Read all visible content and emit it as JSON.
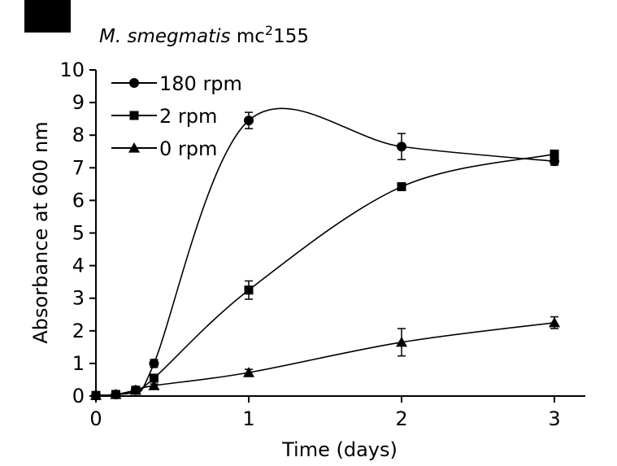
{
  "chart_data": {
    "type": "line",
    "title_italic": "M. smegmatis",
    "title_rest": "mc",
    "title_sup": "2",
    "title_tail": "155",
    "xlabel": "Time (days)",
    "ylabel": "Absorbance at 600 nm",
    "xlim": [
      0,
      3.2
    ],
    "ylim": [
      0,
      10
    ],
    "xticks": [
      0,
      1,
      2,
      3
    ],
    "yticks": [
      0,
      1,
      2,
      3,
      4,
      5,
      6,
      7,
      8,
      9,
      10
    ],
    "grid": false,
    "legend_position": "top-left",
    "series": [
      {
        "name": "180 rpm",
        "marker": "circle",
        "color": "#000000",
        "points": [
          {
            "x": 0,
            "y": 0.02,
            "err": 0
          },
          {
            "x": 0.13,
            "y": 0.05,
            "err": 0
          },
          {
            "x": 0.26,
            "y": 0.18,
            "err": 0
          },
          {
            "x": 0.38,
            "y": 1.0,
            "err": 0.12
          },
          {
            "x": 1.0,
            "y": 8.45,
            "err": 0.25
          },
          {
            "x": 2.0,
            "y": 7.65,
            "err": 0.4
          },
          {
            "x": 3.0,
            "y": 7.2,
            "err": 0.12
          }
        ]
      },
      {
        "name": "2 rpm",
        "marker": "square",
        "color": "#000000",
        "points": [
          {
            "x": 0,
            "y": 0.02,
            "err": 0
          },
          {
            "x": 0.13,
            "y": 0.05,
            "err": 0
          },
          {
            "x": 0.26,
            "y": 0.18,
            "err": 0
          },
          {
            "x": 0.38,
            "y": 0.55,
            "err": 0.1
          },
          {
            "x": 1.0,
            "y": 3.25,
            "err": 0.28
          },
          {
            "x": 2.0,
            "y": 6.42,
            "err": 0.1
          },
          {
            "x": 3.0,
            "y": 7.42,
            "err": 0.1
          }
        ]
      },
      {
        "name": "0 rpm",
        "marker": "triangle",
        "color": "#000000",
        "points": [
          {
            "x": 0,
            "y": 0.02,
            "err": 0
          },
          {
            "x": 0.13,
            "y": 0.05,
            "err": 0
          },
          {
            "x": 0.26,
            "y": 0.18,
            "err": 0
          },
          {
            "x": 0.38,
            "y": 0.32,
            "err": 0.05
          },
          {
            "x": 1.0,
            "y": 0.72,
            "err": 0.1
          },
          {
            "x": 2.0,
            "y": 1.65,
            "err": 0.42
          },
          {
            "x": 3.0,
            "y": 2.25,
            "err": 0.18
          }
        ]
      }
    ]
  },
  "panel_label_color": "#000000"
}
